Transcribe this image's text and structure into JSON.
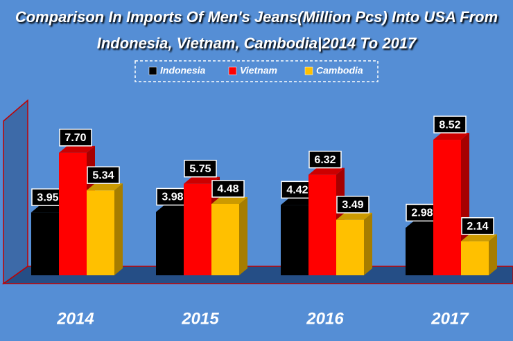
{
  "chart_data": {
    "type": "bar3d",
    "title": "Comparison In Imports Of Men's Jeans(Million Pcs) Into USA From Indonesia, Vietnam, Cambodia|2014 To 2017",
    "categories": [
      "2014",
      "2015",
      "2016",
      "2017"
    ],
    "series": [
      {
        "name": "Indonesia",
        "color": "#000000",
        "values": [
          3.95,
          3.98,
          4.42,
          2.98
        ],
        "value_labels": [
          "3.95",
          "3.98",
          "4.42",
          "2.98"
        ]
      },
      {
        "name": "Vietnam",
        "color": "#ff0000",
        "values": [
          7.7,
          5.75,
          6.32,
          8.52
        ],
        "value_labels": [
          "7.70",
          "5.75",
          "6.32",
          "8.52"
        ]
      },
      {
        "name": "Cambodia",
        "color": "#ffc000",
        "values": [
          5.34,
          4.48,
          3.49,
          2.14
        ],
        "value_labels": [
          "5.34",
          "4.48",
          "3.49",
          "2.14"
        ]
      }
    ],
    "ylim": [
      0,
      11
    ],
    "legend": "top"
  }
}
